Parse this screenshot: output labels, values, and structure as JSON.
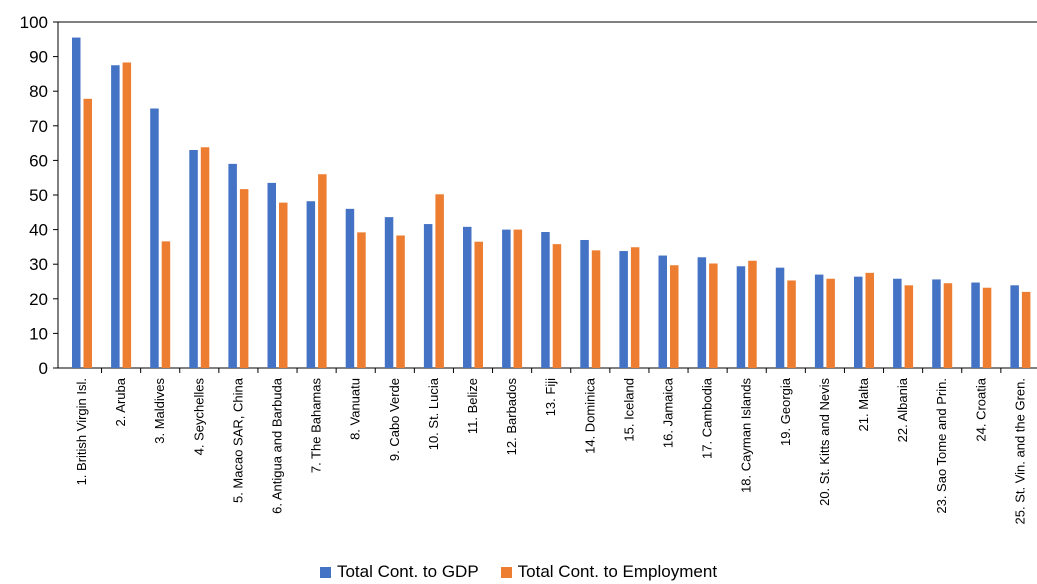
{
  "chart_data": {
    "type": "bar",
    "title": "",
    "xlabel": "",
    "ylabel": "",
    "ylim": [
      0,
      100
    ],
    "yticks": [
      0,
      10,
      20,
      30,
      40,
      50,
      60,
      70,
      80,
      90,
      100
    ],
    "grid": false,
    "legend_position": "bottom",
    "categories": [
      "1. British Virgin Isl.",
      "2. Aruba",
      "3. Maldives",
      "4. Seychelles",
      "5. Macao SAR, China",
      "6. Antigua and Barbuda",
      "7. The Bahamas",
      "8. Vanuatu",
      "9. Cabo Verde",
      "10. St. Lucia",
      "11. Belize",
      "12. Barbados",
      "13. Fiji",
      "14. Dominica",
      "15. Iceland",
      "16. Jamaica",
      "17. Cambodia",
      "18. Cayman Islands",
      "19. Georgia",
      "20. St. Kitts and Nevis",
      "21. Malta",
      "22. Albania",
      "23. Sao Tome and Prin.",
      "24. Croatia",
      "25. St. Vin. and the Gren."
    ],
    "series": [
      {
        "name": "Total Cont. to GDP",
        "color": "#4472C4",
        "values": [
          95.5,
          87.5,
          75,
          63,
          59,
          53.5,
          48.2,
          46,
          43.6,
          41.6,
          40.8,
          40,
          39.3,
          37,
          33.8,
          32.5,
          32,
          29.4,
          29,
          27,
          26.4,
          25.8,
          25.6,
          24.7,
          23.9
        ]
      },
      {
        "name": "Total Cont. to Employment",
        "color": "#ED7D31",
        "values": [
          77.8,
          88.3,
          36.6,
          63.8,
          51.7,
          47.8,
          56,
          39.2,
          38.3,
          50.2,
          36.5,
          40,
          35.8,
          34,
          34.9,
          29.7,
          30.2,
          31,
          25.3,
          25.8,
          27.5,
          23.9,
          24.5,
          23.2,
          22
        ]
      }
    ]
  }
}
